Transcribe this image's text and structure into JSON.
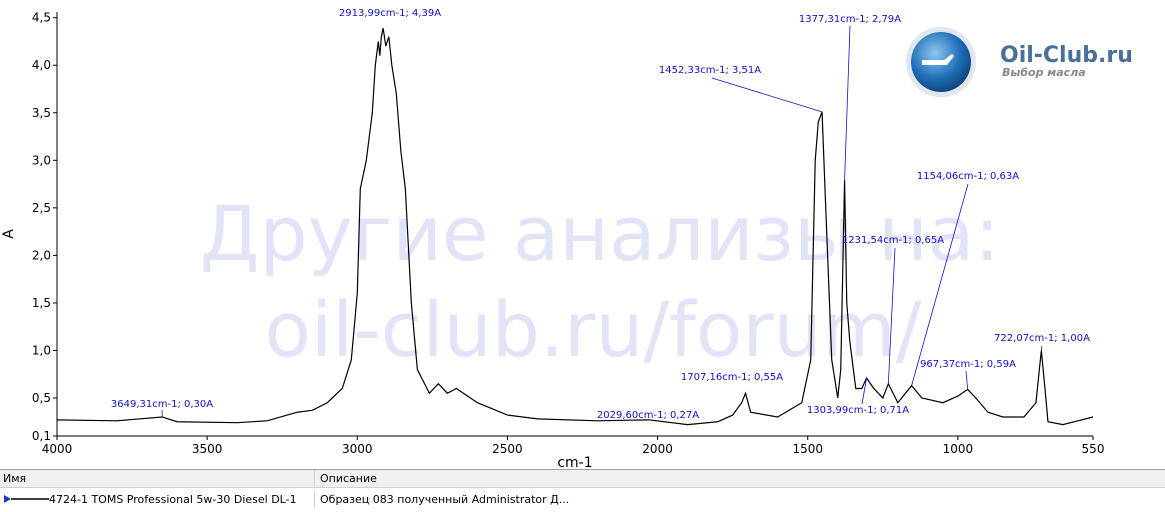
{
  "chart_data": {
    "type": "line",
    "xlabel": "cm-1",
    "ylabel": "A",
    "xlim": [
      4000,
      550
    ],
    "ylim": [
      0.1,
      4.56
    ],
    "xticks": [
      4000,
      3500,
      3000,
      2500,
      2000,
      1500,
      1000,
      550
    ],
    "yticks": [
      {
        "value": 0.1,
        "label": "0,1"
      },
      {
        "value": 0.5,
        "label": "0,5"
      },
      {
        "value": 1.0,
        "label": "1,0"
      },
      {
        "value": 1.5,
        "label": "1,5"
      },
      {
        "value": 2.0,
        "label": "2,0"
      },
      {
        "value": 2.5,
        "label": "2,5"
      },
      {
        "value": 3.0,
        "label": "3,0"
      },
      {
        "value": 3.5,
        "label": "3,5"
      },
      {
        "value": 4.0,
        "label": "4,0"
      },
      {
        "value": 4.5,
        "label": "4,5"
      }
    ],
    "color": "#000000",
    "x": [
      4000,
      3800,
      3649.31,
      3600,
      3400,
      3300,
      3200,
      3150,
      3100,
      3050,
      3020,
      3000,
      2990,
      2970,
      2950,
      2940,
      2930,
      2925,
      2920,
      2913.99,
      2905,
      2895,
      2885,
      2870,
      2855,
      2840,
      2820,
      2800,
      2760,
      2730,
      2700,
      2670,
      2600,
      2500,
      2400,
      2200,
      2029.6,
      1900,
      1800,
      1750,
      1720,
      1707.16,
      1690,
      1600,
      1520,
      1490,
      1475,
      1465,
      1452.33,
      1440,
      1420,
      1400,
      1390,
      1377.31,
      1370,
      1360,
      1340,
      1320,
      1303.99,
      1280,
      1250,
      1231.54,
      1200,
      1154.06,
      1120,
      1050,
      1000,
      967.37,
      940,
      900,
      850,
      780,
      740,
      722.07,
      710,
      700,
      650,
      600,
      550
    ],
    "values": [
      0.27,
      0.26,
      0.3,
      0.25,
      0.24,
      0.26,
      0.35,
      0.37,
      0.45,
      0.6,
      0.9,
      1.6,
      2.7,
      3.0,
      3.5,
      4.0,
      4.25,
      4.1,
      4.3,
      4.39,
      4.2,
      4.3,
      4.0,
      3.7,
      3.1,
      2.7,
      1.5,
      0.8,
      0.55,
      0.65,
      0.55,
      0.6,
      0.45,
      0.32,
      0.28,
      0.26,
      0.27,
      0.22,
      0.25,
      0.32,
      0.45,
      0.55,
      0.35,
      0.3,
      0.45,
      0.9,
      3.0,
      3.4,
      3.51,
      2.5,
      0.9,
      0.5,
      0.8,
      2.79,
      1.5,
      1.1,
      0.6,
      0.6,
      0.71,
      0.6,
      0.5,
      0.65,
      0.45,
      0.63,
      0.5,
      0.45,
      0.52,
      0.59,
      0.5,
      0.35,
      0.3,
      0.3,
      0.45,
      1.0,
      0.6,
      0.25,
      0.22,
      0.26,
      0.3
    ],
    "annotations": [
      {
        "label": "2913,99cm-1; 4,39A",
        "x": 2913.99,
        "y": 4.39
      },
      {
        "label": "1377,31cm-1; 2,79A",
        "x": 1377.31,
        "y": 2.79
      },
      {
        "label": "1452,33cm-1; 3,51A",
        "x": 1452.33,
        "y": 3.51
      },
      {
        "label": "1154,06cm-1; 0,63A",
        "x": 1154.06,
        "y": 0.63
      },
      {
        "label": "1231,54cm-1; 0,65A",
        "x": 1231.54,
        "y": 0.65
      },
      {
        "label": "967,37cm-1; 0,59A",
        "x": 967.37,
        "y": 0.59
      },
      {
        "label": "1303,99cm-1; 0,71A",
        "x": 1303.99,
        "y": 0.71
      },
      {
        "label": "1707,16cm-1; 0,55A",
        "x": 1707.16,
        "y": 0.55
      },
      {
        "label": "2029,60cm-1; 0,27A",
        "x": 2029.6,
        "y": 0.27
      },
      {
        "label": "3649,31cm-1; 0,30A",
        "x": 3649.31,
        "y": 0.3
      },
      {
        "label": "722,07cm-1; 1,00A",
        "x": 722.07,
        "y": 1.0
      }
    ]
  },
  "watermark": {
    "line1": "Другие анализы на:",
    "line2": "oil-club.ru/forum/"
  },
  "logo": {
    "title": "Oil-Club.ru",
    "subtitle": "Выбор масла"
  },
  "table": {
    "headers": [
      "Имя",
      "Описание"
    ],
    "rows": [
      [
        "4724-1 TOMS Professional 5w-30 Diesel DL-1",
        "Образец 083 полученный Administrator Д..."
      ]
    ]
  }
}
